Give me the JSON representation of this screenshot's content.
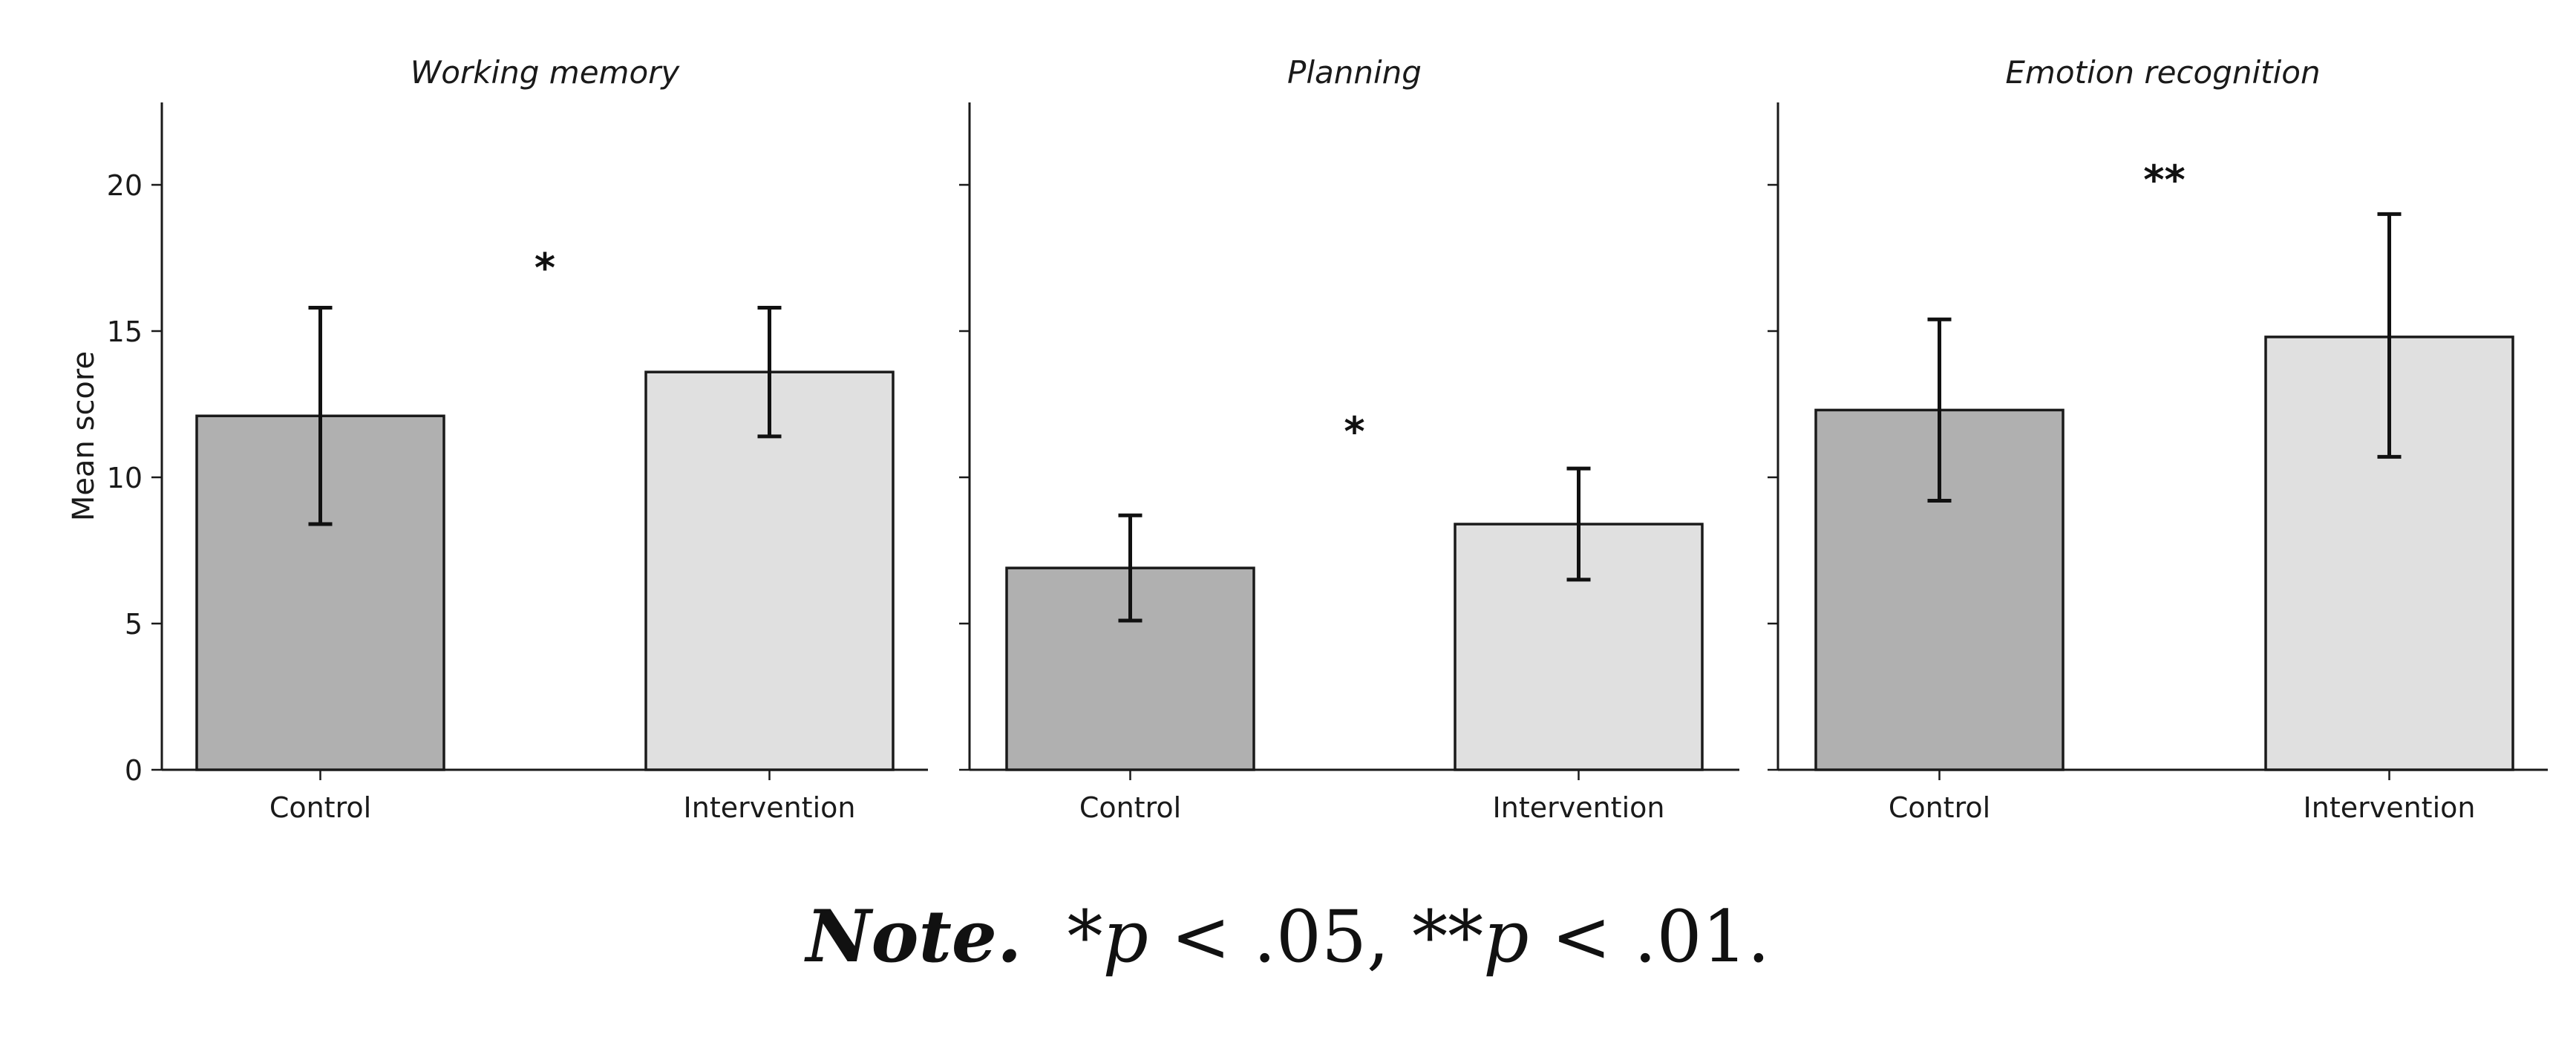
{
  "chart_data": {
    "type": "bar",
    "ylabel": "Mean score",
    "ylim": [
      0,
      23
    ],
    "yticks": [
      0,
      5,
      10,
      15,
      20
    ],
    "categories": [
      "Control",
      "Intervention"
    ],
    "colors": {
      "Control": "#b0b0b0",
      "Intervention": "#e0e0e0"
    },
    "panels": [
      {
        "title": "Working memory",
        "values": [
          12.1,
          13.6
        ],
        "error_low": [
          8.4,
          11.4
        ],
        "error_high": [
          15.8,
          15.8
        ],
        "significance": "*",
        "significance_y": 17.2
      },
      {
        "title": "Planning",
        "values": [
          6.9,
          8.4
        ],
        "error_low": [
          5.1,
          6.5
        ],
        "error_high": [
          8.7,
          10.3
        ],
        "significance": "*",
        "significance_y": 11.6
      },
      {
        "title": "Emotion recognition",
        "values": [
          12.3,
          14.8
        ],
        "error_low": [
          9.2,
          10.7
        ],
        "error_high": [
          15.4,
          19.0
        ],
        "significance": "**",
        "significance_y": 20.2
      }
    ]
  },
  "note": {
    "label": "Note.",
    "star1": "*",
    "p1": "p",
    "thresh1": " < .05, ",
    "star2": "**",
    "p2": "p",
    "thresh2": " < .01."
  }
}
